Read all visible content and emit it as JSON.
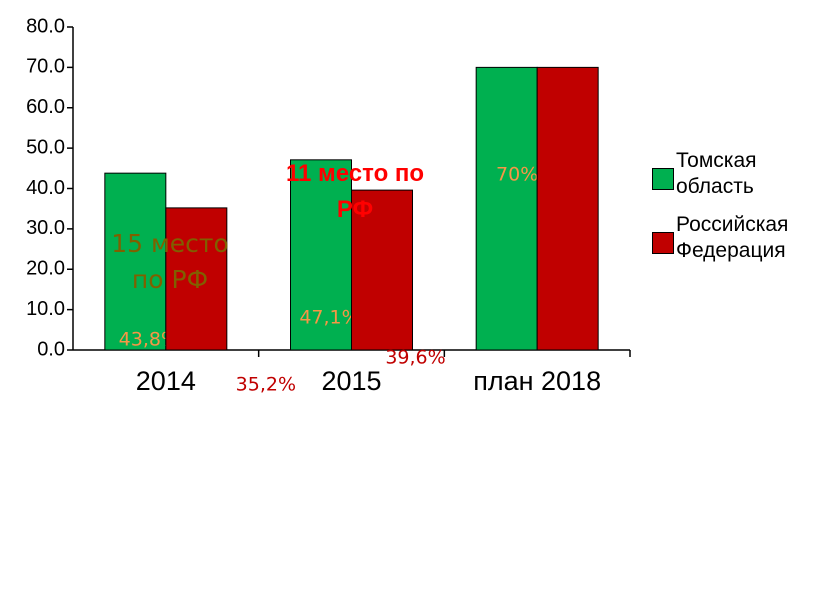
{
  "chart_data": {
    "type": "bar",
    "categories": [
      "2014",
      "2015",
      "план 2018"
    ],
    "series": [
      {
        "name": "Томская область",
        "color": "#00b050",
        "values": [
          43.8,
          47.1,
          70
        ],
        "value_labels": [
          "43,8%",
          "47,1%",
          "70%"
        ]
      },
      {
        "name": "Российская Федерация",
        "color": "#c00000",
        "values": [
          35.2,
          39.6,
          70
        ],
        "value_labels": [
          "35,2%",
          "39,6%",
          null
        ]
      }
    ],
    "ylim": [
      0,
      80
    ],
    "yticks": [
      {
        "value": 0,
        "label": "0.0"
      },
      {
        "value": 10,
        "label": "10.0"
      },
      {
        "value": 20,
        "label": "20.0"
      },
      {
        "value": 30,
        "label": "30.0"
      },
      {
        "value": 40,
        "label": "40.0"
      },
      {
        "value": 50,
        "label": "50.0"
      },
      {
        "value": 60,
        "label": "60.0"
      },
      {
        "value": 70,
        "label": "70.0"
      },
      {
        "value": 80,
        "label": "80.0"
      }
    ],
    "annotations": [
      "15 место по РФ",
      "11 место по РФ"
    ],
    "legend": "right"
  }
}
